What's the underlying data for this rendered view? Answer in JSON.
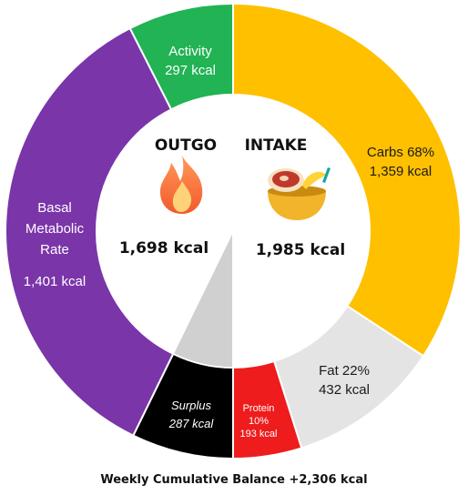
{
  "chart_data": {
    "type": "donut",
    "left_half": {
      "title": "OUTGO",
      "total": "1,698 kcal",
      "icon": "flame-icon",
      "segments": [
        {
          "id": "bmr",
          "label_lines": [
            "Basal",
            "Metabolic",
            "Rate"
          ],
          "value_label": "1,401 kcal",
          "kcal": 1401,
          "color": "#7a35a9"
        },
        {
          "id": "activity",
          "label_lines": [
            "Activity"
          ],
          "value_label": "297 kcal",
          "kcal": 297,
          "color": "#21b354"
        },
        {
          "id": "surplus",
          "label_lines": [
            "Surplus"
          ],
          "value_label": "287 kcal",
          "kcal": 287,
          "color": "#000000"
        }
      ]
    },
    "right_half": {
      "title": "INTAKE",
      "total": "1,985 kcal",
      "icon": "food-bowl-icon",
      "segments": [
        {
          "id": "carbs",
          "label_lines": [
            "Carbs 68%"
          ],
          "value_label": "1,359 kcal",
          "kcal": 1359,
          "color": "#ffc000"
        },
        {
          "id": "fat",
          "label_lines": [
            "Fat 22%"
          ],
          "value_label": "432 kcal",
          "kcal": 432,
          "color": "#e4e4e4"
        },
        {
          "id": "protein",
          "label_lines": [
            "Protein",
            "10%"
          ],
          "value_label": "193 kcal",
          "kcal": 193,
          "color": "#ee1c1c"
        }
      ]
    },
    "footer": "Weekly Cumulative Balance +2,306 kcal"
  }
}
